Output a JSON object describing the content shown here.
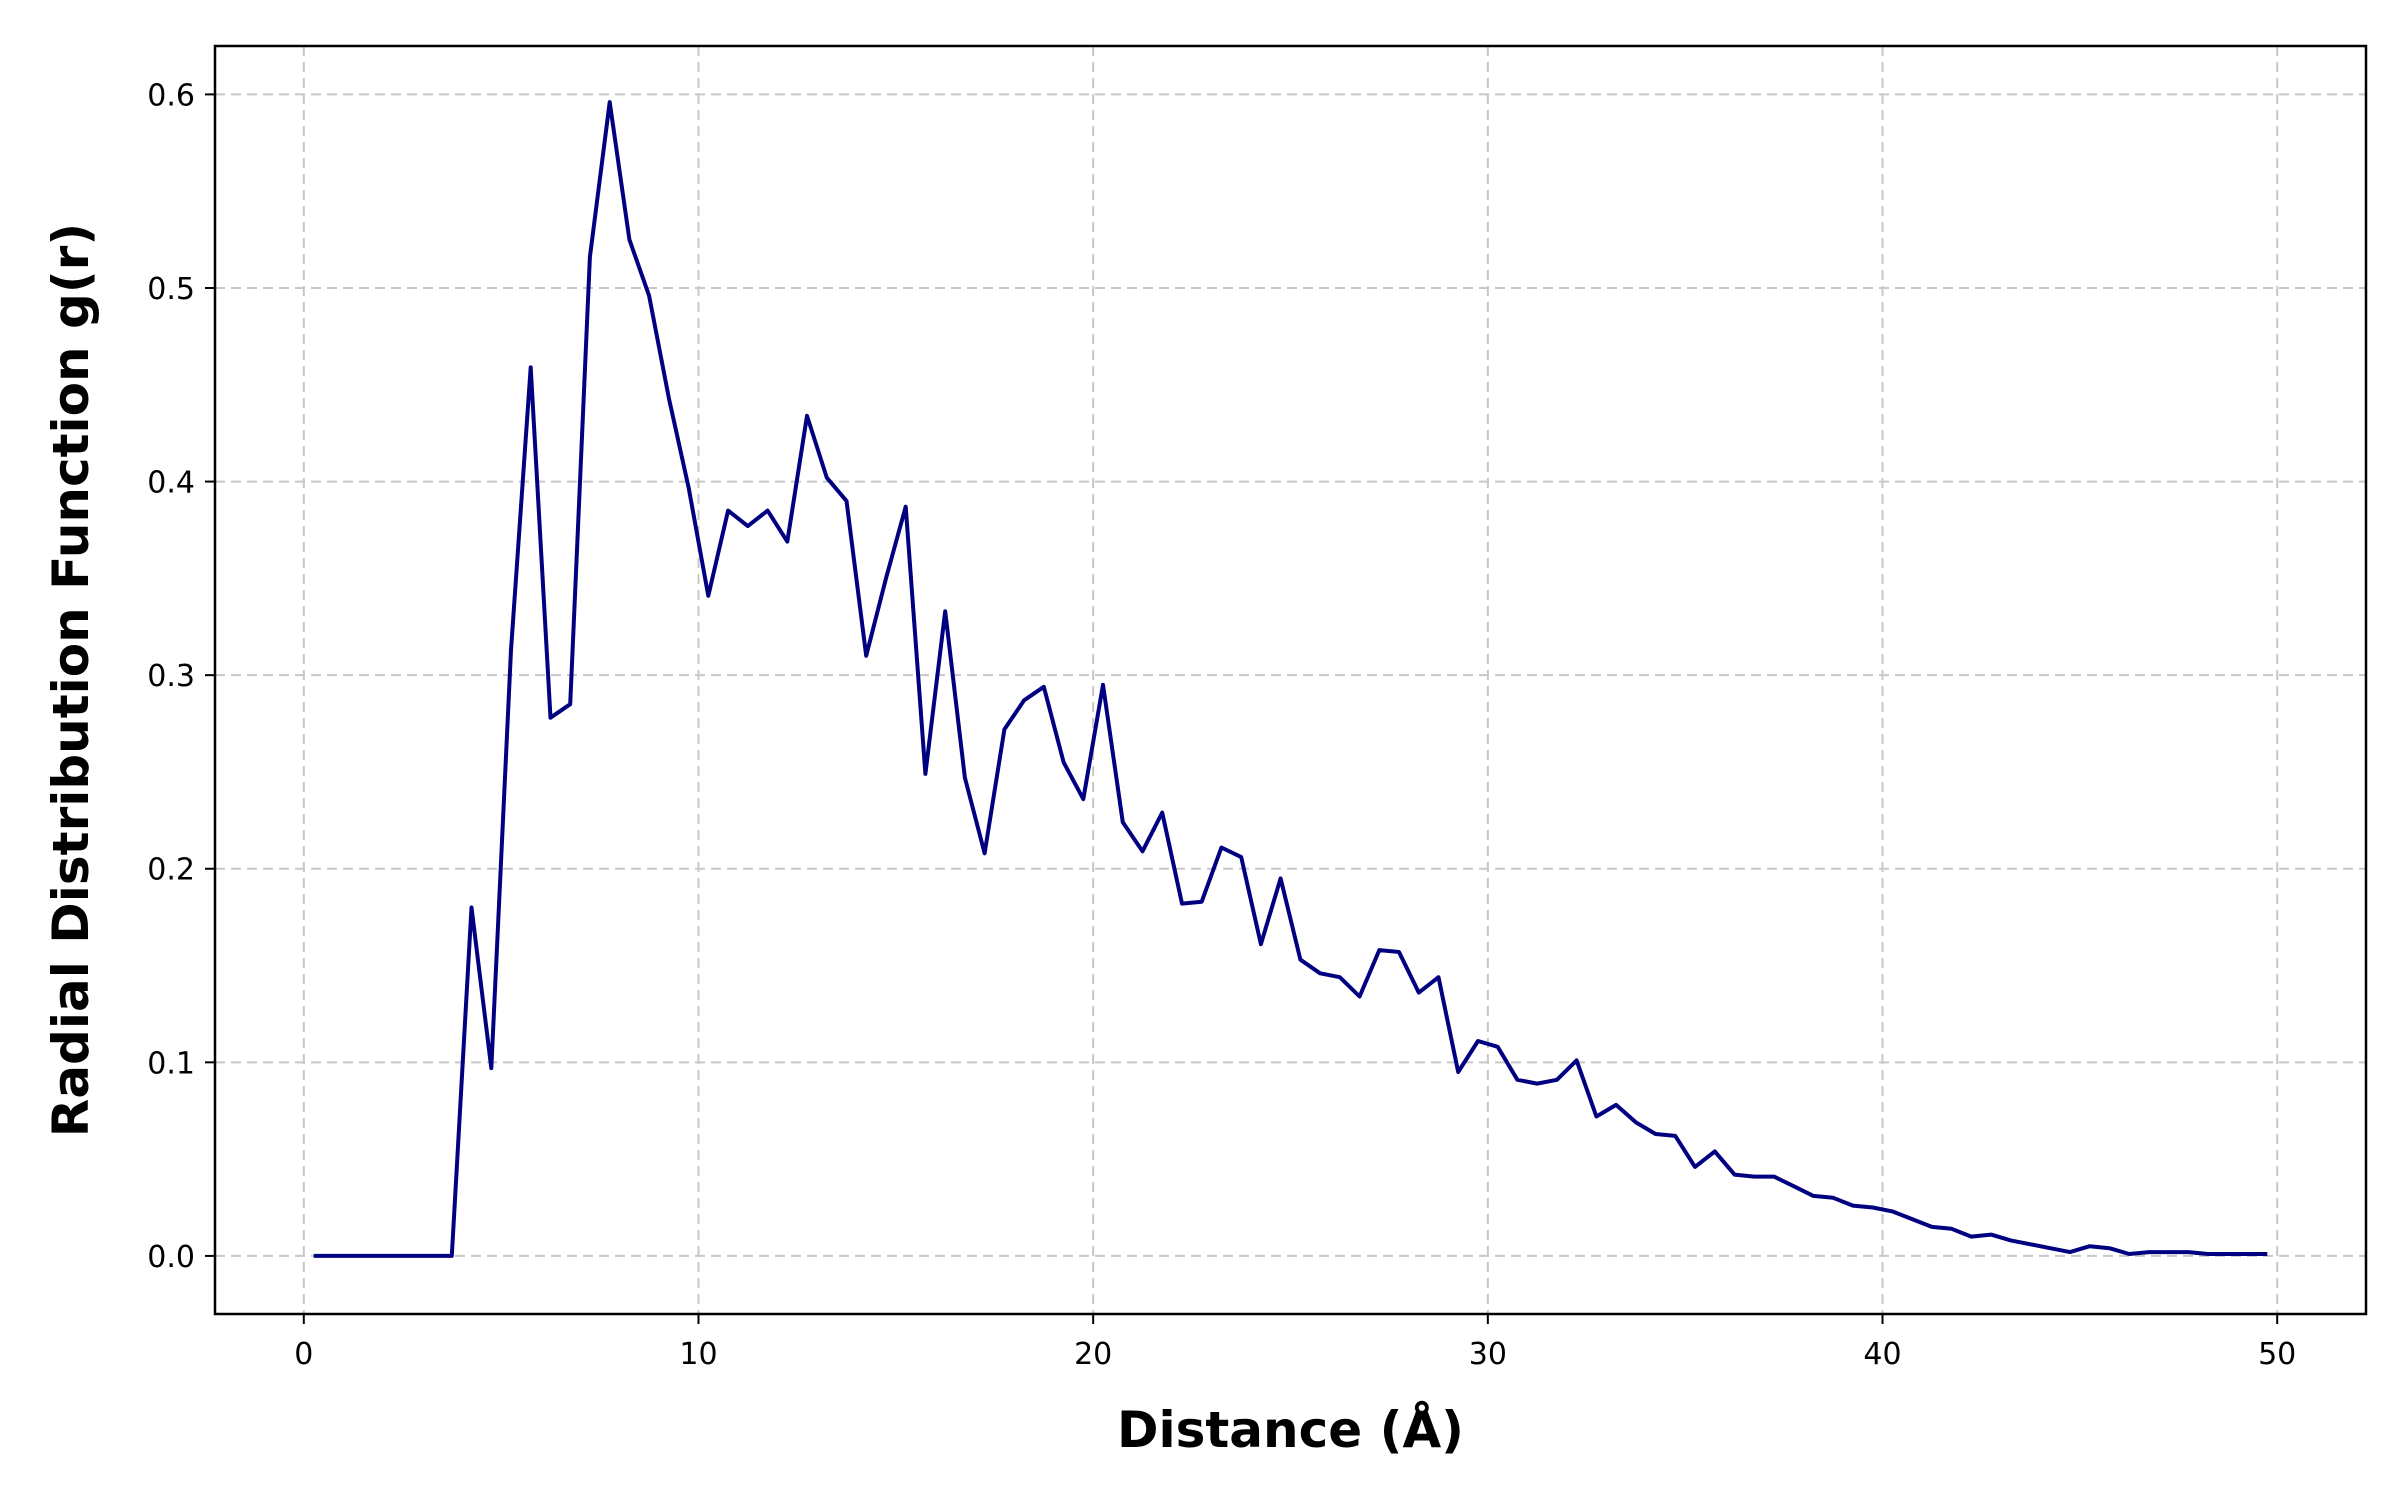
{
  "chart_data": {
    "type": "line",
    "title": "",
    "xlabel": "Distance (Å)",
    "ylabel": "Radial Distribution Function g(r)",
    "xlim": [
      -2.25,
      52.25
    ],
    "ylim": [
      -0.03,
      0.625
    ],
    "xticks": [
      0,
      10,
      20,
      30,
      40,
      50
    ],
    "xtick_labels": [
      "0",
      "10",
      "20",
      "30",
      "40",
      "50"
    ],
    "yticks": [
      0.0,
      0.1,
      0.2,
      0.3,
      0.4,
      0.5,
      0.6
    ],
    "ytick_labels": [
      "0.0",
      "0.1",
      "0.2",
      "0.3",
      "0.4",
      "0.5",
      "0.6"
    ],
    "grid": true,
    "line_color": "#000080",
    "series": [
      {
        "name": "g(r)",
        "x": [
          0.25,
          0.75,
          1.25,
          1.75,
          2.25,
          2.75,
          3.25,
          3.75,
          4.25,
          4.75,
          5.25,
          5.75,
          6.25,
          6.75,
          7.25,
          7.75,
          8.25,
          8.75,
          9.25,
          9.75,
          10.25,
          10.75,
          11.25,
          11.75,
          12.25,
          12.75,
          13.25,
          13.75,
          14.25,
          14.75,
          15.25,
          15.75,
          16.25,
          16.75,
          17.25,
          17.75,
          18.25,
          18.75,
          19.25,
          19.75,
          20.25,
          20.75,
          21.25,
          21.75,
          22.25,
          22.75,
          23.25,
          23.75,
          24.25,
          24.75,
          25.25,
          25.75,
          26.25,
          26.75,
          27.25,
          27.75,
          28.25,
          28.75,
          29.25,
          29.75,
          30.25,
          30.75,
          31.25,
          31.75,
          32.25,
          32.75,
          33.25,
          33.75,
          34.25,
          34.75,
          35.25,
          35.75,
          36.25,
          36.75,
          37.25,
          37.75,
          38.25,
          38.75,
          39.25,
          39.75,
          40.25,
          40.75,
          41.25,
          41.75,
          42.25,
          42.75,
          43.25,
          43.75,
          44.25,
          44.75,
          45.25,
          45.75,
          46.25,
          46.75,
          47.25,
          47.75,
          48.25,
          48.75,
          49.25,
          49.75
        ],
        "y": [
          0.0,
          0.0,
          0.0,
          0.0,
          0.0,
          0.0,
          0.0,
          0.0,
          0.18,
          0.097,
          0.313,
          0.459,
          0.278,
          0.285,
          0.516,
          0.596,
          0.525,
          0.496,
          0.443,
          0.397,
          0.341,
          0.385,
          0.377,
          0.385,
          0.369,
          0.434,
          0.402,
          0.39,
          0.31,
          0.35,
          0.387,
          0.249,
          0.333,
          0.247,
          0.208,
          0.272,
          0.287,
          0.294,
          0.255,
          0.236,
          0.295,
          0.224,
          0.209,
          0.229,
          0.182,
          0.183,
          0.211,
          0.206,
          0.161,
          0.195,
          0.153,
          0.146,
          0.144,
          0.134,
          0.158,
          0.157,
          0.136,
          0.144,
          0.095,
          0.111,
          0.108,
          0.091,
          0.089,
          0.091,
          0.101,
          0.072,
          0.078,
          0.069,
          0.063,
          0.062,
          0.046,
          0.054,
          0.042,
          0.041,
          0.041,
          0.036,
          0.031,
          0.03,
          0.026,
          0.025,
          0.023,
          0.019,
          0.015,
          0.014,
          0.01,
          0.011,
          0.008,
          0.006,
          0.004,
          0.002,
          0.005,
          0.004,
          0.001,
          0.002,
          0.002,
          0.002,
          0.001,
          0.001,
          0.001,
          0.001
        ]
      }
    ]
  }
}
